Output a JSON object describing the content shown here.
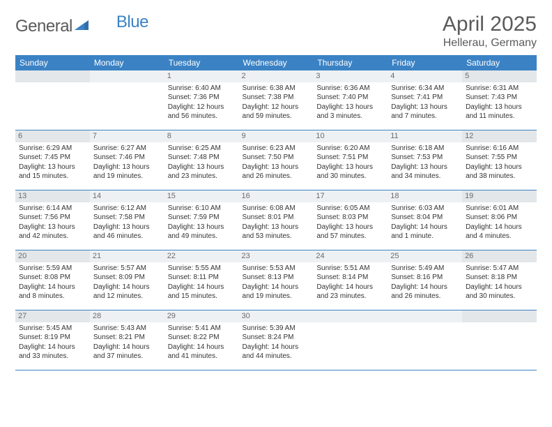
{
  "brand": {
    "left": "General",
    "right": "Blue"
  },
  "title": "April 2025",
  "location": "Hellerau, Germany",
  "colors": {
    "header_bg": "#3b82c4",
    "header_text": "#ffffff",
    "daynum_bg": "#eef1f3",
    "daynum_bg_weekend": "#e3e7ea",
    "border": "#3b82c4",
    "text": "#333333",
    "title_text": "#5a5a5a"
  },
  "day_headers": [
    "Sunday",
    "Monday",
    "Tuesday",
    "Wednesday",
    "Thursday",
    "Friday",
    "Saturday"
  ],
  "weeks": [
    [
      null,
      null,
      {
        "n": "1",
        "sr": "6:40 AM",
        "ss": "7:36 PM",
        "dl": "12 hours and 56 minutes."
      },
      {
        "n": "2",
        "sr": "6:38 AM",
        "ss": "7:38 PM",
        "dl": "12 hours and 59 minutes."
      },
      {
        "n": "3",
        "sr": "6:36 AM",
        "ss": "7:40 PM",
        "dl": "13 hours and 3 minutes."
      },
      {
        "n": "4",
        "sr": "6:34 AM",
        "ss": "7:41 PM",
        "dl": "13 hours and 7 minutes."
      },
      {
        "n": "5",
        "sr": "6:31 AM",
        "ss": "7:43 PM",
        "dl": "13 hours and 11 minutes."
      }
    ],
    [
      {
        "n": "6",
        "sr": "6:29 AM",
        "ss": "7:45 PM",
        "dl": "13 hours and 15 minutes."
      },
      {
        "n": "7",
        "sr": "6:27 AM",
        "ss": "7:46 PM",
        "dl": "13 hours and 19 minutes."
      },
      {
        "n": "8",
        "sr": "6:25 AM",
        "ss": "7:48 PM",
        "dl": "13 hours and 23 minutes."
      },
      {
        "n": "9",
        "sr": "6:23 AM",
        "ss": "7:50 PM",
        "dl": "13 hours and 26 minutes."
      },
      {
        "n": "10",
        "sr": "6:20 AM",
        "ss": "7:51 PM",
        "dl": "13 hours and 30 minutes."
      },
      {
        "n": "11",
        "sr": "6:18 AM",
        "ss": "7:53 PM",
        "dl": "13 hours and 34 minutes."
      },
      {
        "n": "12",
        "sr": "6:16 AM",
        "ss": "7:55 PM",
        "dl": "13 hours and 38 minutes."
      }
    ],
    [
      {
        "n": "13",
        "sr": "6:14 AM",
        "ss": "7:56 PM",
        "dl": "13 hours and 42 minutes."
      },
      {
        "n": "14",
        "sr": "6:12 AM",
        "ss": "7:58 PM",
        "dl": "13 hours and 46 minutes."
      },
      {
        "n": "15",
        "sr": "6:10 AM",
        "ss": "7:59 PM",
        "dl": "13 hours and 49 minutes."
      },
      {
        "n": "16",
        "sr": "6:08 AM",
        "ss": "8:01 PM",
        "dl": "13 hours and 53 minutes."
      },
      {
        "n": "17",
        "sr": "6:05 AM",
        "ss": "8:03 PM",
        "dl": "13 hours and 57 minutes."
      },
      {
        "n": "18",
        "sr": "6:03 AM",
        "ss": "8:04 PM",
        "dl": "14 hours and 1 minute."
      },
      {
        "n": "19",
        "sr": "6:01 AM",
        "ss": "8:06 PM",
        "dl": "14 hours and 4 minutes."
      }
    ],
    [
      {
        "n": "20",
        "sr": "5:59 AM",
        "ss": "8:08 PM",
        "dl": "14 hours and 8 minutes."
      },
      {
        "n": "21",
        "sr": "5:57 AM",
        "ss": "8:09 PM",
        "dl": "14 hours and 12 minutes."
      },
      {
        "n": "22",
        "sr": "5:55 AM",
        "ss": "8:11 PM",
        "dl": "14 hours and 15 minutes."
      },
      {
        "n": "23",
        "sr": "5:53 AM",
        "ss": "8:13 PM",
        "dl": "14 hours and 19 minutes."
      },
      {
        "n": "24",
        "sr": "5:51 AM",
        "ss": "8:14 PM",
        "dl": "14 hours and 23 minutes."
      },
      {
        "n": "25",
        "sr": "5:49 AM",
        "ss": "8:16 PM",
        "dl": "14 hours and 26 minutes."
      },
      {
        "n": "26",
        "sr": "5:47 AM",
        "ss": "8:18 PM",
        "dl": "14 hours and 30 minutes."
      }
    ],
    [
      {
        "n": "27",
        "sr": "5:45 AM",
        "ss": "8:19 PM",
        "dl": "14 hours and 33 minutes."
      },
      {
        "n": "28",
        "sr": "5:43 AM",
        "ss": "8:21 PM",
        "dl": "14 hours and 37 minutes."
      },
      {
        "n": "29",
        "sr": "5:41 AM",
        "ss": "8:22 PM",
        "dl": "14 hours and 41 minutes."
      },
      {
        "n": "30",
        "sr": "5:39 AM",
        "ss": "8:24 PM",
        "dl": "14 hours and 44 minutes."
      },
      null,
      null,
      null
    ]
  ],
  "labels": {
    "sunrise": "Sunrise:",
    "sunset": "Sunset:",
    "daylight": "Daylight:"
  }
}
